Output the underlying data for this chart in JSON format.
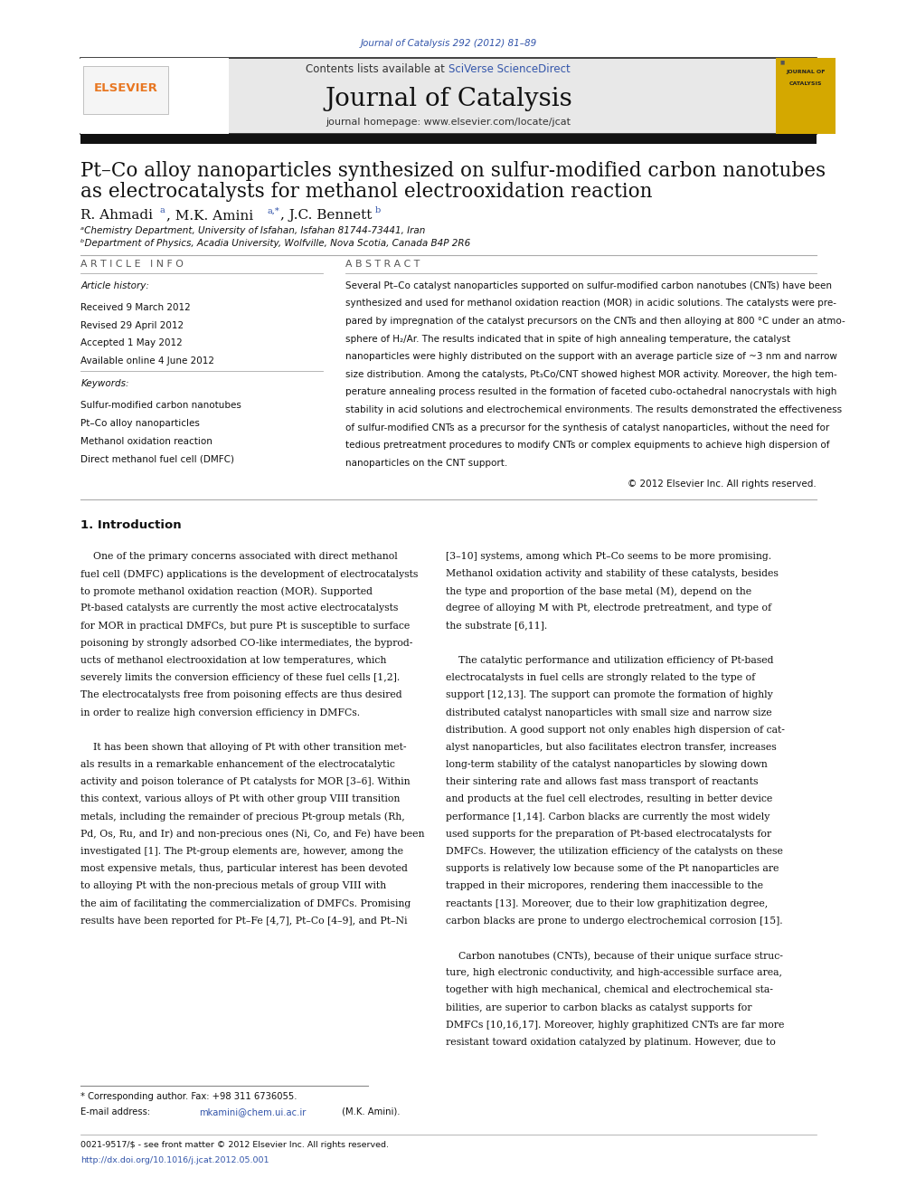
{
  "figsize": [
    9.92,
    13.23
  ],
  "dpi": 100,
  "bg_color": "#ffffff",
  "top_citation": "Journal of Catalysis 292 (2012) 81–89",
  "top_citation_color": "#3355aa",
  "header_bg_color": "#e8e8e8",
  "header_border_color": "#333333",
  "journal_title": "Journal of Catalysis",
  "journal_homepage": "journal homepage: www.elsevier.com/locate/jcat",
  "contents_sciverse_color": "#3355aa",
  "article_title_line1": "Pt–Co alloy nanoparticles synthesized on sulfur-modified carbon nanotubes",
  "article_title_line2": "as electrocatalysts for methanol electrooxidation reaction",
  "affil_a": "ᵃChemistry Department, University of Isfahan, Isfahan 81744-73441, Iran",
  "affil_b": "ᵇDepartment of Physics, Acadia University, Wolfville, Nova Scotia, Canada B4P 2R6",
  "section_article_info": "A R T I C L E   I N F O",
  "section_abstract": "A B S T R A C T",
  "article_history_label": "Article history:",
  "received": "Received 9 March 2012",
  "revised": "Revised 29 April 2012",
  "accepted": "Accepted 1 May 2012",
  "available": "Available online 4 June 2012",
  "keywords_label": "Keywords:",
  "keyword1": "Sulfur-modified carbon nanotubes",
  "keyword2": "Pt–Co alloy nanoparticles",
  "keyword3": "Methanol oxidation reaction",
  "keyword4": "Direct methanol fuel cell (DMFC)",
  "copyright": "© 2012 Elsevier Inc. All rights reserved.",
  "section1_title": "1. Introduction",
  "footnote_line1": "* Corresponding author. Fax: +98 311 6736055.",
  "footer_line1": "0021-9517/$ - see front matter © 2012 Elsevier Inc. All rights reserved.",
  "footer_line2": "http://dx.doi.org/10.1016/j.jcat.2012.05.001",
  "footer_color": "#3355aa",
  "elsevier_color": "#e87722",
  "journal_cover_color": "#d4a800",
  "abstract_lines": [
    "Several Pt–Co catalyst nanoparticles supported on sulfur-modified carbon nanotubes (CNTs) have been",
    "synthesized and used for methanol oxidation reaction (MOR) in acidic solutions. The catalysts were pre-",
    "pared by impregnation of the catalyst precursors on the CNTs and then alloying at 800 °C under an atmo-",
    "sphere of H₂/Ar. The results indicated that in spite of high annealing temperature, the catalyst",
    "nanoparticles were highly distributed on the support with an average particle size of ~3 nm and narrow",
    "size distribution. Among the catalysts, Pt₃Co/CNT showed highest MOR activity. Moreover, the high tem-",
    "perature annealing process resulted in the formation of faceted cubo-octahedral nanocrystals with high",
    "stability in acid solutions and electrochemical environments. The results demonstrated the effectiveness",
    "of sulfur-modified CNTs as a precursor for the synthesis of catalyst nanoparticles, without the need for",
    "tedious pretreatment procedures to modify CNTs or complex equipments to achieve high dispersion of",
    "nanoparticles on the CNT support."
  ],
  "intro_col1_lines": [
    "    One of the primary concerns associated with direct methanol",
    "fuel cell (DMFC) applications is the development of electrocatalysts",
    "to promote methanol oxidation reaction (MOR). Supported",
    "Pt-based catalysts are currently the most active electrocatalysts",
    "for MOR in practical DMFCs, but pure Pt is susceptible to surface",
    "poisoning by strongly adsorbed CO-like intermediates, the byprod-",
    "ucts of methanol electrooxidation at low temperatures, which",
    "severely limits the conversion efficiency of these fuel cells [1,2].",
    "The electrocatalysts free from poisoning effects are thus desired",
    "in order to realize high conversion efficiency in DMFCs.",
    "",
    "    It has been shown that alloying of Pt with other transition met-",
    "als results in a remarkable enhancement of the electrocatalytic",
    "activity and poison tolerance of Pt catalysts for MOR [3–6]. Within",
    "this context, various alloys of Pt with other group VIII transition",
    "metals, including the remainder of precious Pt-group metals (Rh,",
    "Pd, Os, Ru, and Ir) and non-precious ones (Ni, Co, and Fe) have been",
    "investigated [1]. The Pt-group elements are, however, among the",
    "most expensive metals, thus, particular interest has been devoted",
    "to alloying Pt with the non-precious metals of group VIII with",
    "the aim of facilitating the commercialization of DMFCs. Promising",
    "results have been reported for Pt–Fe [4,7], Pt–Co [4–9], and Pt–Ni"
  ],
  "intro_col2_lines": [
    "[3–10] systems, among which Pt–Co seems to be more promising.",
    "Methanol oxidation activity and stability of these catalysts, besides",
    "the type and proportion of the base metal (M), depend on the",
    "degree of alloying M with Pt, electrode pretreatment, and type of",
    "the substrate [6,11].",
    "",
    "    The catalytic performance and utilization efficiency of Pt-based",
    "electrocatalysts in fuel cells are strongly related to the type of",
    "support [12,13]. The support can promote the formation of highly",
    "distributed catalyst nanoparticles with small size and narrow size",
    "distribution. A good support not only enables high dispersion of cat-",
    "alyst nanoparticles, but also facilitates electron transfer, increases",
    "long-term stability of the catalyst nanoparticles by slowing down",
    "their sintering rate and allows fast mass transport of reactants",
    "and products at the fuel cell electrodes, resulting in better device",
    "performance [1,14]. Carbon blacks are currently the most widely",
    "used supports for the preparation of Pt-based electrocatalysts for",
    "DMFCs. However, the utilization efficiency of the catalysts on these",
    "supports is relatively low because some of the Pt nanoparticles are",
    "trapped in their micropores, rendering them inaccessible to the",
    "reactants [13]. Moreover, due to their low graphitization degree,",
    "carbon blacks are prone to undergo electrochemical corrosion [15].",
    "",
    "    Carbon nanotubes (CNTs), because of their unique surface struc-",
    "ture, high electronic conductivity, and high-accessible surface area,",
    "together with high mechanical, chemical and electrochemical sta-",
    "bilities, are superior to carbon blacks as catalyst supports for",
    "DMFCs [10,16,17]. Moreover, highly graphitized CNTs are far more",
    "resistant toward oxidation catalyzed by platinum. However, due to"
  ]
}
